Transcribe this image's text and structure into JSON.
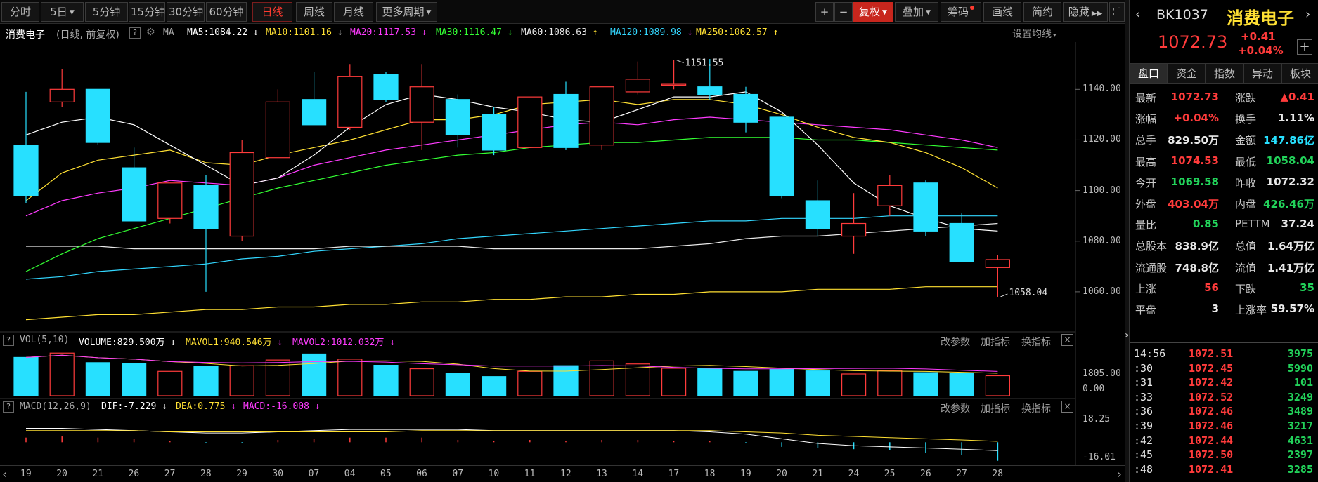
{
  "toolbar": {
    "periods": [
      "分时",
      "5日",
      "5分钟",
      "15分钟",
      "30分钟",
      "60分钟",
      "日线",
      "周线",
      "月线",
      "更多周期"
    ],
    "active_period": "日线",
    "tools": [
      "+",
      "−",
      "复权",
      "叠加",
      "筹码",
      "画线",
      "简约",
      "隐藏"
    ],
    "fuquan_label": "复权",
    "fullscreen_icon": "fullscreen-icon"
  },
  "ma_header": {
    "name": "消费电子",
    "mode": "(日线, 前复权)",
    "ma_label": "MA",
    "items": [
      {
        "text": "MA5:1084.22",
        "color": "#ffffff",
        "arrow": "↓"
      },
      {
        "text": "MA10:1101.16",
        "color": "#ffe033",
        "arrow": "↓"
      },
      {
        "text": "MA20:1117.53",
        "color": "#ff3bff",
        "arrow": "↓"
      },
      {
        "text": "MA30:1116.47",
        "color": "#33ff33",
        "arrow": "↓"
      },
      {
        "text": "MA60:1086.63",
        "color": "#e8e8e8",
        "arrow": "↑"
      },
      {
        "text": "MA120:1089.98",
        "color": "#33d7ff",
        "arrow": "↓"
      },
      {
        "text": "MA250:1062.57",
        "color": "#ffe033",
        "arrow": "↑"
      }
    ],
    "settings": "设置均线"
  },
  "chart_data": [
    {
      "type": "candlestick",
      "dates": [
        "19",
        "20",
        "21",
        "26",
        "27",
        "28",
        "29",
        "30",
        "07",
        "04",
        "05",
        "06",
        "07",
        "10",
        "11",
        "12",
        "13",
        "14",
        "17",
        "18",
        "19",
        "20",
        "21",
        "24",
        "25",
        "26",
        "27",
        "28"
      ],
      "ohlc": [
        [
          1118,
          1139,
          1095,
          1098
        ],
        [
          1135,
          1148,
          1133,
          1140
        ],
        [
          1140,
          1140,
          1118,
          1119
        ],
        [
          1109,
          1117,
          1088,
          1088
        ],
        [
          1089,
          1103,
          1087,
          1103
        ],
        [
          1102,
          1106,
          1060,
          1085
        ],
        [
          1082,
          1120,
          1080,
          1115
        ],
        [
          1113,
          1140,
          1113,
          1135
        ],
        [
          1136,
          1147,
          1126,
          1126
        ],
        [
          1125,
          1150,
          1124,
          1145
        ],
        [
          1146,
          1147,
          1135,
          1136
        ],
        [
          1127,
          1150,
          1116,
          1141
        ],
        [
          1136,
          1138,
          1117,
          1122
        ],
        [
          1130,
          1133,
          1114,
          1116
        ],
        [
          1117,
          1137,
          1117,
          1137
        ],
        [
          1138,
          1143,
          1116,
          1117
        ],
        [
          1118,
          1141,
          1116,
          1141
        ],
        [
          1139,
          1151,
          1138,
          1144
        ],
        [
          1142,
          1151.55,
          1140,
          1142
        ],
        [
          1141,
          1152,
          1136,
          1138
        ],
        [
          1138,
          1141,
          1123,
          1127
        ],
        [
          1129,
          1129,
          1097,
          1098
        ],
        [
          1096,
          1104,
          1082,
          1085
        ],
        [
          1082,
          1099,
          1075,
          1087
        ],
        [
          1094,
          1106,
          1090,
          1102
        ],
        [
          1103,
          1104,
          1082,
          1084
        ],
        [
          1087,
          1091,
          1072,
          1072
        ],
        [
          1069.58,
          1074.53,
          1058.04,
          1072.73
        ]
      ],
      "ma5": [
        1122,
        1127,
        1129,
        1126,
        1118,
        1110,
        1102,
        1105,
        1114,
        1125,
        1134,
        1138,
        1136,
        1133,
        1131,
        1128,
        1127,
        1132,
        1137,
        1137,
        1139,
        1131,
        1118,
        1103,
        1094,
        1089,
        1085,
        1084
      ],
      "ma10": [
        1096,
        1107,
        1112,
        1114,
        1116,
        1111,
        1110,
        1114,
        1117,
        1120,
        1124,
        1128,
        1128,
        1130,
        1134,
        1135,
        1136,
        1134,
        1136,
        1136,
        1134,
        1130,
        1125,
        1121,
        1119,
        1115,
        1109,
        1101
      ],
      "ma20": [
        1090,
        1096,
        1099,
        1101,
        1104,
        1103,
        1102,
        1105,
        1110,
        1113,
        1116,
        1118,
        1120,
        1122,
        1124,
        1126,
        1127,
        1126,
        1128,
        1129,
        1128,
        1127,
        1126,
        1125,
        1124,
        1122,
        1120,
        1117
      ],
      "ma30": [
        1068,
        1075,
        1081,
        1085,
        1089,
        1093,
        1097,
        1101,
        1104,
        1107,
        1110,
        1112,
        1114,
        1115,
        1117,
        1118,
        1119,
        1119,
        1120,
        1121,
        1121,
        1121,
        1120,
        1120,
        1119,
        1118,
        1117,
        1116
      ],
      "ma60": [
        1078,
        1078,
        1078,
        1077,
        1077,
        1077,
        1077,
        1077,
        1077,
        1078,
        1078,
        1078,
        1078,
        1077,
        1077,
        1077,
        1077,
        1077,
        1078,
        1079,
        1081,
        1082,
        1082,
        1083,
        1084,
        1085,
        1086,
        1087
      ],
      "ma120": [
        1065,
        1066,
        1068,
        1069,
        1070,
        1071,
        1073,
        1074,
        1076,
        1077,
        1078,
        1079,
        1081,
        1082,
        1083,
        1084,
        1085,
        1086,
        1087,
        1088,
        1088,
        1089,
        1089,
        1089,
        1090,
        1090,
        1090,
        1090
      ],
      "ma250": [
        1049,
        1050,
        1051,
        1051,
        1052,
        1053,
        1053,
        1054,
        1054,
        1055,
        1055,
        1056,
        1056,
        1057,
        1057,
        1058,
        1058,
        1059,
        1059,
        1060,
        1060,
        1060,
        1061,
        1061,
        1061,
        1062,
        1062,
        1062
      ],
      "ylim": [
        1045,
        1157
      ],
      "yticks": [
        "1140.00",
        "1120.00",
        "1100.00",
        "1080.00",
        "1060.00"
      ],
      "annotations": [
        {
          "text": "1151.55",
          "index": 18
        },
        {
          "text": "1058.04",
          "index": 27
        }
      ]
    },
    {
      "type": "bar",
      "name": "VOL",
      "values": [
        880,
        980,
        760,
        740,
        560,
        670,
        690,
        820,
        960,
        840,
        700,
        620,
        510,
        440,
        560,
        690,
        800,
        730,
        630,
        630,
        560,
        610,
        570,
        500,
        580,
        530,
        510,
        460
      ],
      "ylim": [
        0,
        1805
      ],
      "yticks": [
        "1805.00",
        "0.00"
      ]
    },
    {
      "type": "bar",
      "name": "MACD",
      "values": [
        4,
        5,
        4,
        3,
        1,
        -1,
        -1,
        2,
        3,
        4,
        4,
        4,
        2,
        1,
        2,
        1,
        2,
        2,
        1,
        1,
        -1,
        -4,
        -5,
        -6,
        -7,
        -9,
        -11,
        -16
      ],
      "dif": [
        12,
        12,
        11,
        10,
        9,
        8,
        8,
        9,
        10,
        11,
        11,
        11,
        11,
        10,
        10,
        10,
        10,
        10,
        10,
        9,
        7,
        3,
        -1,
        -3,
        -4,
        -5,
        -6,
        -7.2
      ],
      "dea": [
        10,
        10,
        10,
        10,
        9,
        9,
        9,
        9,
        9,
        9,
        9,
        10,
        10,
        10,
        10,
        10,
        10,
        10,
        10,
        10,
        9,
        8,
        6,
        5,
        4,
        3,
        2,
        0.8
      ],
      "ylim": [
        -18,
        22
      ],
      "yticks": [
        "18.25",
        "-16.01"
      ]
    }
  ],
  "vol_header": {
    "title": "VOL(5,10)",
    "items": [
      {
        "text": "VOLUME:829.500万",
        "color": "#ffffff",
        "arrow": "↓"
      },
      {
        "text": "MAVOL1:940.546万",
        "color": "#ffe033",
        "arrow": "↓"
      },
      {
        "text": "MAVOL2:1012.032万",
        "color": "#ff3bff",
        "arrow": "↓"
      }
    ],
    "links": [
      "改参数",
      "加指标",
      "换指标"
    ]
  },
  "macd_header": {
    "title": "MACD(12,26,9)",
    "items": [
      {
        "text": "DIF:-7.229",
        "color": "#ffffff",
        "arrow": "↓"
      },
      {
        "text": "DEA:0.775",
        "color": "#ffe033",
        "arrow": "↓"
      },
      {
        "text": "MACD:-16.008",
        "color": "#ff3bff",
        "arrow": "↓"
      }
    ],
    "links": [
      "改参数",
      "加指标",
      "换指标"
    ]
  },
  "quote": {
    "code": "BK1037",
    "name": "消费电子",
    "price": "1072.73",
    "change": "+0.41",
    "change_pct": "+0.04%",
    "tabs": [
      "盘口",
      "资金",
      "指数",
      "异动",
      "板块"
    ],
    "rows": [
      [
        {
          "l": "最新",
          "v": "1072.73",
          "c": "red"
        },
        {
          "l": "涨跌",
          "v": "▲0.41",
          "c": "red"
        }
      ],
      [
        {
          "l": "涨幅",
          "v": "+0.04%",
          "c": "red"
        },
        {
          "l": "换手",
          "v": "1.11%",
          "c": "white"
        }
      ],
      [
        {
          "l": "总手",
          "v": "829.50万",
          "c": "white"
        },
        {
          "l": "金额",
          "v": "147.86亿",
          "c": "cyan"
        }
      ],
      [
        {
          "l": "最高",
          "v": "1074.53",
          "c": "red"
        },
        {
          "l": "最低",
          "v": "1058.04",
          "c": "green"
        }
      ],
      [
        {
          "l": "今开",
          "v": "1069.58",
          "c": "green"
        },
        {
          "l": "昨收",
          "v": "1072.32",
          "c": "white"
        }
      ],
      [
        {
          "l": "外盘",
          "v": "403.04万",
          "c": "red"
        },
        {
          "l": "内盘",
          "v": "426.46万",
          "c": "green"
        }
      ],
      [
        {
          "l": "量比",
          "v": "0.85",
          "c": "green"
        },
        {
          "l": "PETTM",
          "v": "37.24",
          "c": "white"
        }
      ],
      [
        {
          "l": "总股本",
          "v": "838.9亿",
          "c": "white"
        },
        {
          "l": "总值",
          "v": "1.64万亿",
          "c": "white"
        }
      ],
      [
        {
          "l": "流通股",
          "v": "748.8亿",
          "c": "white"
        },
        {
          "l": "流值",
          "v": "1.41万亿",
          "c": "white"
        }
      ],
      [
        {
          "l": "上涨",
          "v": "56",
          "c": "red"
        },
        {
          "l": "下跌",
          "v": "35",
          "c": "green"
        }
      ],
      [
        {
          "l": "平盘",
          "v": "3",
          "c": "white"
        },
        {
          "l": "上涨率",
          "v": "59.57%",
          "c": "white"
        }
      ]
    ],
    "ticks": [
      {
        "t": "14:56",
        "p": "1072.51",
        "v": "3975"
      },
      {
        "t": ":30",
        "p": "1072.45",
        "v": "5990"
      },
      {
        "t": ":31",
        "p": "1072.42",
        "v": "101"
      },
      {
        "t": ":33",
        "p": "1072.52",
        "v": "3249"
      },
      {
        "t": ":36",
        "p": "1072.46",
        "v": "3489"
      },
      {
        "t": ":39",
        "p": "1072.46",
        "v": "3217"
      },
      {
        "t": ":42",
        "p": "1072.44",
        "v": "4631"
      },
      {
        "t": ":45",
        "p": "1072.50",
        "v": "2397"
      },
      {
        "t": ":48",
        "p": "1072.41",
        "v": "3285"
      }
    ]
  },
  "colors": {
    "up": "#ff3b3b",
    "down": "#27e0ff",
    "bg": "#000000"
  }
}
